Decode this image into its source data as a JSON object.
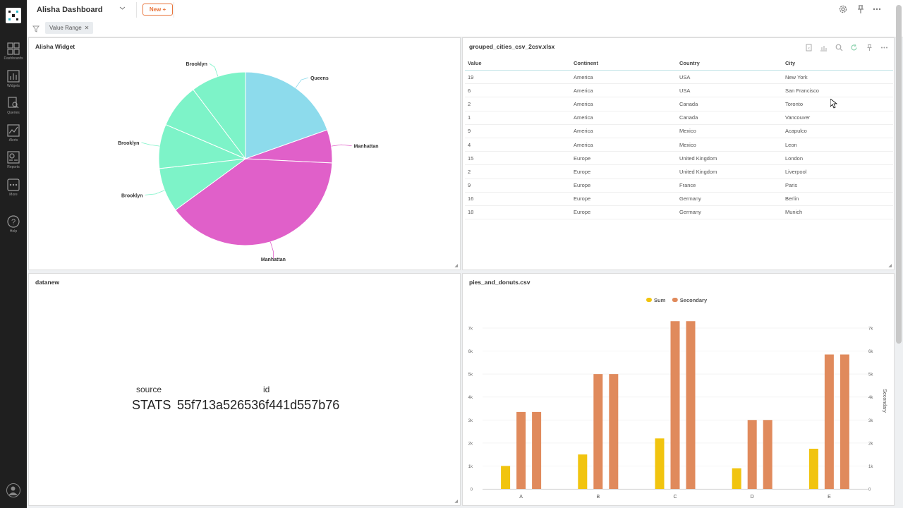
{
  "nav": {
    "items": [
      {
        "label": "Dashboards",
        "icon": "dashboards-icon"
      },
      {
        "label": "Widgets",
        "icon": "widgets-icon"
      },
      {
        "label": "Queries",
        "icon": "queries-icon"
      },
      {
        "label": "Alerts",
        "icon": "alerts-icon"
      },
      {
        "label": "Reports",
        "icon": "reports-icon"
      },
      {
        "label": "More",
        "icon": "more-icon"
      },
      {
        "label": "Help",
        "icon": "help-icon"
      }
    ]
  },
  "header": {
    "title": "Alisha Dashboard",
    "new_label": "New +"
  },
  "filters": {
    "chip_label": "Value Range"
  },
  "widgets": {
    "pie": {
      "title": "Alisha Widget",
      "chart_data": {
        "type": "pie",
        "slices": [
          {
            "label": "Queens",
            "value": 19,
            "color": "#8ddbec"
          },
          {
            "label": "Manhattan",
            "value": 6,
            "color": "#e060c9"
          },
          {
            "label": "Manhattan",
            "value": 38,
            "color": "#e060c9"
          },
          {
            "label": "Brooklyn",
            "value": 8,
            "color": "#7df3c8"
          },
          {
            "label": "Brooklyn",
            "value": 8,
            "color": "#7df3c8"
          },
          {
            "label": "Brooklyn",
            "value": 8,
            "color": "#7df3c8"
          },
          {
            "label": "Brooklyn",
            "value": 10,
            "color": "#7df3c8"
          }
        ],
        "labels_shown": [
          "Queens",
          "Manhattan",
          "Manhattan",
          "Brooklyn",
          "Brooklyn",
          "Brooklyn"
        ]
      }
    },
    "table": {
      "title": "grouped_cities_csv_2csv.xlsx",
      "columns": [
        "Value",
        "Continent",
        "Country",
        "City"
      ],
      "rows": [
        [
          "19",
          "America",
          "USA",
          "New York"
        ],
        [
          "6",
          "America",
          "USA",
          "San Francisco"
        ],
        [
          "2",
          "America",
          "Canada",
          "Toronto"
        ],
        [
          "1",
          "America",
          "Canada",
          "Vancouver"
        ],
        [
          "9",
          "America",
          "Mexico",
          "Acapulco"
        ],
        [
          "4",
          "America",
          "Mexico",
          "Leon"
        ],
        [
          "15",
          "Europe",
          "United Kingdom",
          "London"
        ],
        [
          "2",
          "Europe",
          "United Kingdom",
          "Liverpool"
        ],
        [
          "9",
          "Europe",
          "France",
          "Paris"
        ],
        [
          "16",
          "Europe",
          "Germany",
          "Berlin"
        ],
        [
          "18",
          "Europe",
          "Germany",
          "Munich"
        ]
      ]
    },
    "datanew": {
      "title": "datanew",
      "source_key": "source",
      "source_val": "STATS",
      "id_key": "id",
      "id_val": "55f713a526536f441d557b76"
    },
    "bars": {
      "title": "pies_and_donuts.csv",
      "chart_data": {
        "type": "bar",
        "categories": [
          "A",
          "B",
          "C",
          "D",
          "E"
        ],
        "series": [
          {
            "name": "Sum",
            "values": [
              1000,
              1500,
              2200,
              900,
              1750
            ],
            "color": "#f1c40f"
          },
          {
            "name": "Secondary",
            "values": [
              3350,
              5000,
              7300,
              3000,
              5850
            ],
            "color": "#e08a5c"
          },
          {
            "name": "Secondary",
            "values": [
              3350,
              5000,
              7300,
              3000,
              5850
            ],
            "color": "#e08a5c"
          }
        ],
        "legend": [
          "Sum",
          "Secondary"
        ],
        "y_ticks": [
          "0",
          "1k",
          "2k",
          "3k",
          "4k",
          "5k",
          "6k",
          "7k"
        ],
        "right_axis_label": "Secondary",
        "ylim": [
          0,
          7000
        ]
      }
    }
  }
}
